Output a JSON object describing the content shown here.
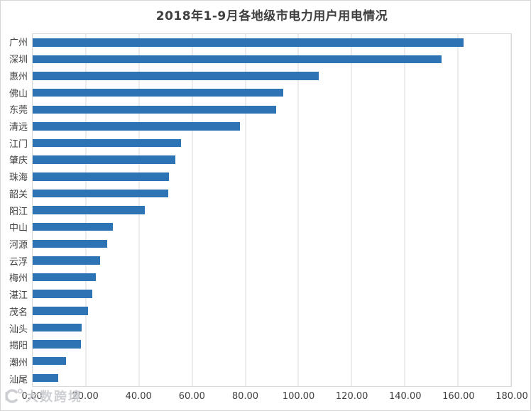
{
  "chart_data": {
    "type": "bar",
    "orientation": "horizontal",
    "title": "2018年1-9月各地级市电力用户用电情况",
    "categories": [
      "广州",
      "深圳",
      "惠州",
      "佛山",
      "东莞",
      "清远",
      "江门",
      "肇庆",
      "珠海",
      "韶关",
      "阳江",
      "中山",
      "河源",
      "云浮",
      "梅州",
      "湛江",
      "茂名",
      "汕头",
      "揭阳",
      "潮州",
      "汕尾"
    ],
    "values": [
      162.1,
      153.9,
      107.7,
      94.3,
      91.6,
      78.0,
      55.9,
      53.8,
      51.4,
      51.1,
      42.3,
      30.3,
      28.0,
      25.3,
      23.7,
      22.4,
      20.8,
      18.4,
      18.1,
      12.5,
      9.6
    ],
    "xlabel": "",
    "ylabel": "",
    "xlim": [
      0,
      180
    ],
    "x_ticks": [
      0,
      20,
      40,
      60,
      80,
      100,
      120,
      140,
      160,
      180
    ],
    "tick_decimals": 2,
    "grid": true,
    "legend_position": "none",
    "bar_color": "#2E74B5",
    "gridline_color": "#D9D9D9",
    "text_color": "#404040"
  },
  "watermark": {
    "text": "大数跨境"
  }
}
